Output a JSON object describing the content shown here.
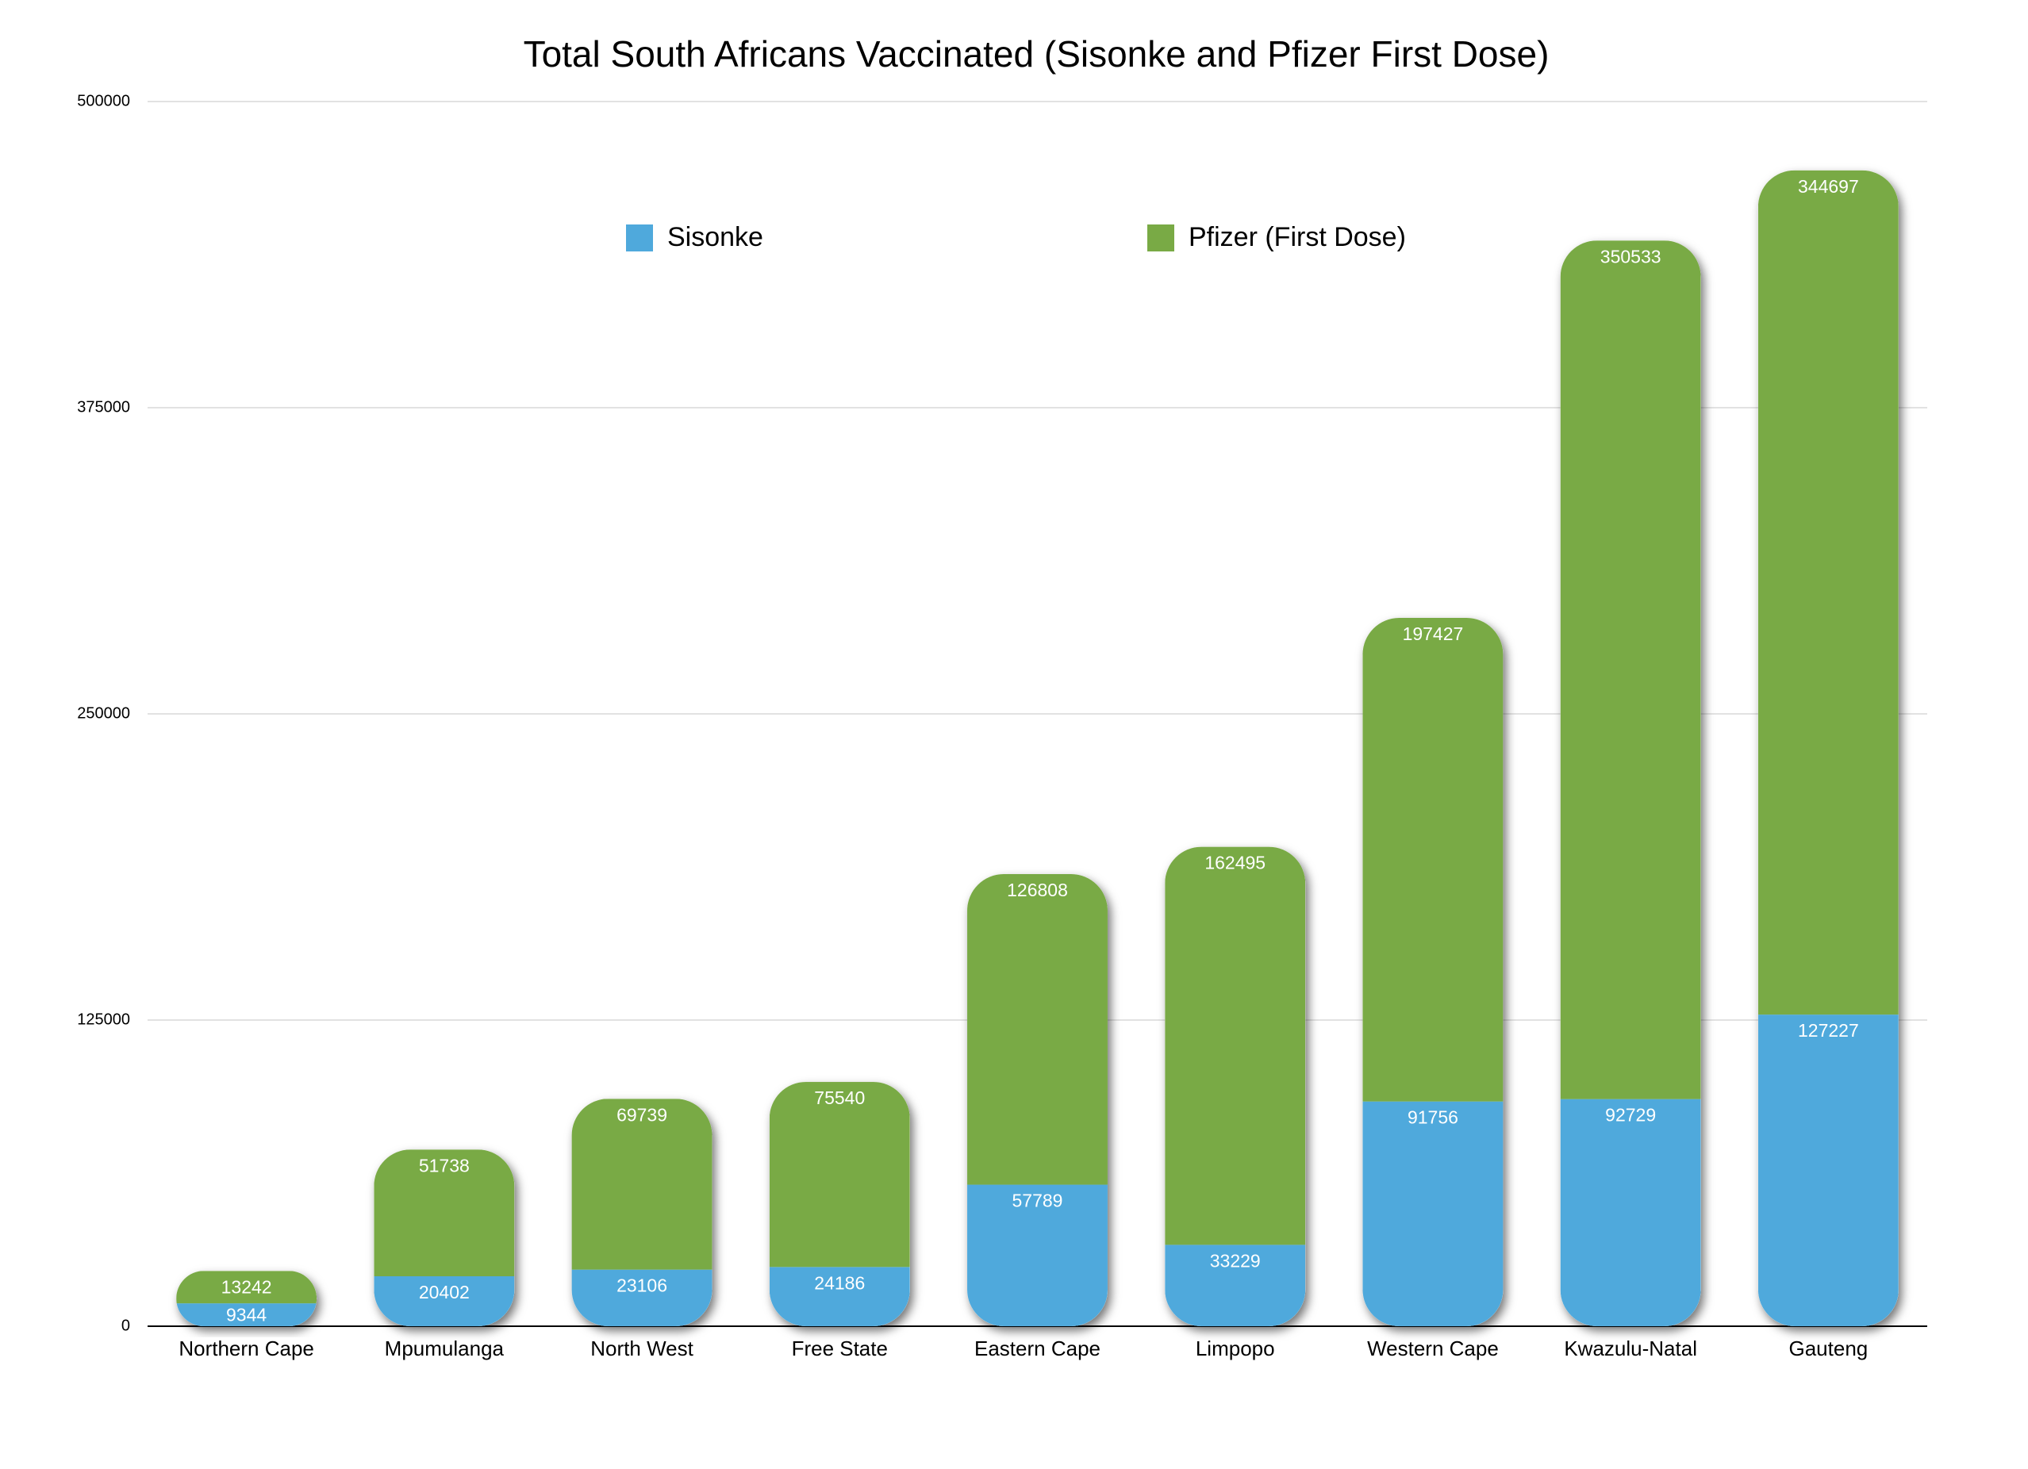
{
  "chart_data": {
    "type": "stacked_bar",
    "title": "Total South Africans Vaccinated (Sisonke and Pfizer First Dose)",
    "categories": [
      "Northern Cape",
      "Mpumulanga",
      "North West",
      "Free State",
      "Eastern Cape",
      "Limpopo",
      "Western Cape",
      "Kwazulu-Natal",
      "Gauteng"
    ],
    "series": [
      {
        "name": "Sisonke",
        "color": "#4fa9dc",
        "values": [
          9344,
          20402,
          23106,
          24186,
          57789,
          33229,
          91756,
          92729,
          127227
        ]
      },
      {
        "name": "Pfizer (First Dose)",
        "color": "#79aa45",
        "values": [
          13242,
          51738,
          69739,
          75540,
          126808,
          162495,
          197427,
          350533,
          344697
        ]
      }
    ],
    "ylim": [
      0,
      500000
    ],
    "yticks": [
      0,
      125000,
      250000,
      375000,
      500000
    ],
    "grid": true,
    "legend": "top"
  }
}
